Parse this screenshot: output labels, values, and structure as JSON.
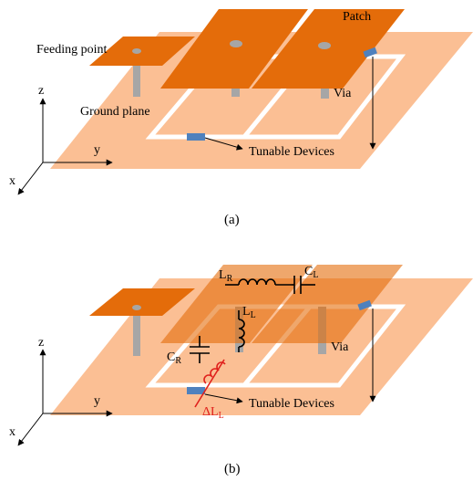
{
  "panel_a": {
    "caption": "(a)",
    "labels": {
      "feeding_point": "Feeding point",
      "patch": "Patch",
      "via": "Via",
      "ground_plane": "Ground plane",
      "tunable_devices": "Tunable Devices",
      "axis_z": "z",
      "axis_y": "y",
      "axis_x": "x"
    }
  },
  "panel_b": {
    "caption": "(b)",
    "labels": {
      "via": "Via",
      "tunable_devices": "Tunable Devices",
      "axis_z": "z",
      "axis_y": "y",
      "axis_x": "x",
      "LR_main": "L",
      "LR_sub": "R",
      "CL_main": "C",
      "CL_sub": "L",
      "LL_main": "L",
      "LL_sub": "L",
      "CR_main": "C",
      "CR_sub": "R",
      "dLL_main": "ΔL",
      "dLL_sub": "L"
    }
  },
  "colors": {
    "ground": "#fbbf94",
    "patch": "#e46c0a",
    "patch_translucent": "#ee8a44",
    "via": "#a6a6a6",
    "device": "#4f81bd",
    "inductor_red": "#e0201c"
  }
}
